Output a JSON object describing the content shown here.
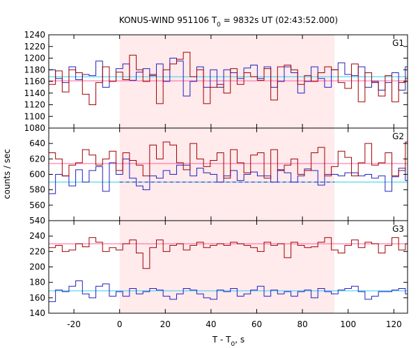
{
  "chart_data": {
    "type": "line",
    "title_parts": [
      "KONUS-WIND 951106 T",
      "0",
      " = 9832s UT (02:43:52.000)"
    ],
    "xlabel_parts": [
      "T - T",
      "0",
      ", s"
    ],
    "ylabel": "counts / sec",
    "xlim": [
      -31,
      126
    ],
    "x_ticks": [
      -20,
      0,
      20,
      40,
      60,
      80,
      100,
      120
    ],
    "shaded_interval": [
      0,
      94
    ],
    "colors": {
      "red_series": "#a00000",
      "blue_series": "#2020c0",
      "pink_background": "#ff60a0",
      "cyan_background": "#33ccee",
      "dashed_level": "#2020c0",
      "shade": "#ffeaec"
    },
    "panels": [
      {
        "label": "G1",
        "ylim": [
          1080,
          1240
        ],
        "y_ticks": [
          1080,
          1100,
          1120,
          1140,
          1160,
          1180,
          1200,
          1220,
          1240
        ],
        "background_levels": {
          "pink": 1161,
          "cyan": 1168
        },
        "series": [
          {
            "color_key": "red_series",
            "bin_width": 2.944,
            "x_start": -31,
            "values": [
              1155,
              1178,
              1142,
              1180,
              1175,
              1138,
              1120,
              1158,
              1185,
              1160,
              1176,
              1163,
              1205,
              1180,
              1160,
              1172,
              1122,
              1180,
              1190,
              1198,
              1210,
              1168,
              1180,
              1122,
              1150,
              1155,
              1140,
              1182,
              1155,
              1175,
              1168,
              1162,
              1182,
              1128,
              1185,
              1188,
              1180,
              1155,
              1170,
              1160,
              1175,
              1185,
              1180,
              1158,
              1148,
              1190,
              1125,
              1175,
              1158,
              1135,
              1170,
              1125,
              1158,
              1165,
              1140,
              1162,
              1128,
              1180,
              1162,
              1163,
              1180,
              1185,
              1172,
              1140,
              1180,
              1200,
              1172,
              1178,
              1160,
              1163
            ]
          },
          {
            "color_key": "blue_series",
            "bin_width": 2.944,
            "x_start": -31,
            "values": [
              1180,
              1165,
              1158,
              1185,
              1163,
              1172,
              1170,
              1195,
              1150,
              1160,
              1182,
              1190,
              1162,
              1176,
              1182,
              1170,
              1190,
              1160,
              1200,
              1195,
              1135,
              1160,
              1185,
              1150,
              1180,
              1150,
              1180,
              1175,
              1165,
              1183,
              1188,
              1165,
              1185,
              1150,
              1160,
              1185,
              1175,
              1140,
              1160,
              1185,
              1165,
              1150,
              1180,
              1192,
              1172,
              1170,
              1185,
              1150,
              1160,
              1145,
              1158,
              1175,
              1145,
              1185,
              1168,
              1178,
              1180,
              1160,
              1190,
              1150,
              1160,
              1175,
              1145,
              1165,
              1175,
              1182,
              1158,
              1135,
              1183,
              1168
            ]
          }
        ],
        "dashed_level": null
      },
      {
        "label": "G2",
        "ylim": [
          540,
          660
        ],
        "y_ticks": [
          540,
          560,
          580,
          600,
          620,
          640
        ],
        "background_levels": {
          "pink": 614,
          "cyan": 590
        },
        "series": [
          {
            "color_key": "red_series",
            "bin_width": 2.944,
            "x_start": -31,
            "values": [
              628,
              620,
              598,
              612,
              615,
              632,
              625,
              612,
              620,
              630,
              605,
              628,
              618,
              612,
              598,
              638,
              620,
              642,
              638,
              615,
              606,
              640,
              620,
              610,
              618,
              628,
              595,
              632,
              615,
              602,
              625,
              628,
              595,
              632,
              605,
              612,
              620,
              600,
              605,
              628,
              635,
              598,
              610,
              630,
              622,
              598,
              615,
              640,
              612,
              615,
              628,
              598,
              605,
              642,
              620,
              600,
              612,
              620,
              632,
              585,
              632,
              645,
              600,
              620,
              608,
              622,
              628,
              615,
              620,
              612
            ]
          },
          {
            "color_key": "blue_series",
            "bin_width": 2.944,
            "x_start": -31,
            "values": [
              575,
              600,
              598,
              585,
              606,
              590,
              605,
              610,
              578,
              615,
              600,
              620,
              595,
              585,
              580,
              598,
              595,
              605,
              600,
              612,
              612,
              598,
              608,
              602,
              600,
              590,
              598,
              605,
              592,
              600,
              603,
              598,
              598,
              590,
              606,
              602,
              590,
              598,
              607,
              605,
              586,
              600,
              600,
              598,
              602,
              602,
              598,
              600,
              595,
              598,
              578,
              597,
              608,
              592,
              615,
              578,
              630,
              585,
              580,
              592,
              598,
              588,
              592,
              580,
              586,
              590,
              585,
              588,
              575,
              590
            ]
          }
        ],
        "dashed_level": {
          "value": 590,
          "x_range": [
            0,
            94
          ]
        }
      },
      {
        "label": "G3",
        "ylim": [
          140,
          260
        ],
        "y_ticks": [
          140,
          160,
          180,
          200,
          220,
          240
        ],
        "background_levels": {
          "pink": 230,
          "cyan": 169
        },
        "series": [
          {
            "color_key": "red_series",
            "bin_width": 2.944,
            "x_start": -31,
            "values": [
              225,
              228,
              220,
              222,
              230,
              226,
              238,
              232,
              220,
              225,
              222,
              230,
              235,
              218,
              198,
              225,
              235,
              220,
              228,
              230,
              222,
              228,
              232,
              225,
              228,
              230,
              228,
              232,
              230,
              228,
              225,
              220,
              232,
              228,
              230,
              212,
              232,
              228,
              225,
              226,
              232,
              238,
              222,
              218,
              228,
              235,
              225,
              232,
              230,
              218,
              228,
              238,
              222,
              230,
              242,
              228,
              225,
              230,
              225,
              220,
              228,
              232,
              235,
              228,
              230,
              232,
              240,
              230,
              220,
              225
            ]
          },
          {
            "color_key": "blue_series",
            "bin_width": 2.944,
            "x_start": -31,
            "values": [
              155,
              170,
              168,
              175,
              182,
              165,
              160,
              175,
              178,
              162,
              168,
              162,
              172,
              165,
              168,
              172,
              170,
              162,
              158,
              165,
              172,
              170,
              165,
              160,
              158,
              170,
              168,
              172,
              162,
              165,
              170,
              175,
              162,
              170,
              165,
              168,
              162,
              168,
              170,
              160,
              172,
              168,
              165,
              170,
              172,
              175,
              168,
              158,
              162,
              168,
              168,
              170,
              172,
              165,
              168,
              155,
              162,
              170,
              165,
              172,
              168,
              175,
              170,
              160,
              168,
              162,
              165,
              172,
              160,
              175
            ]
          }
        ],
        "dashed_level": null
      }
    ]
  }
}
